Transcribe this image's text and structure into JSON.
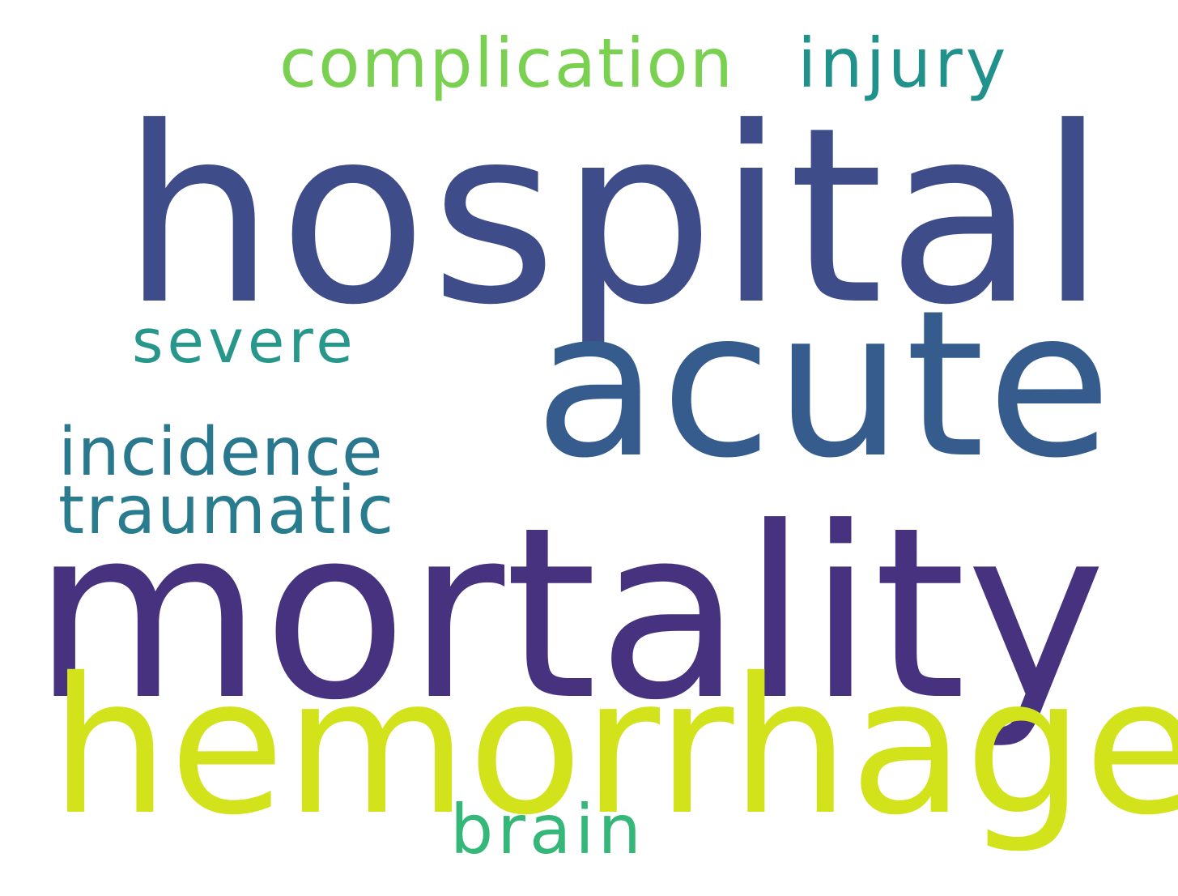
{
  "words": [
    {
      "id": "hospital",
      "text": "hospital",
      "color": "#3e4d89"
    },
    {
      "id": "acute",
      "text": "acute",
      "color": "#365c8d"
    },
    {
      "id": "mortality",
      "text": "mortality",
      "color": "#46327e"
    },
    {
      "id": "hemorrhage",
      "text": "hemorrhage",
      "color": "#d2e21b"
    },
    {
      "id": "complication",
      "text": "complication",
      "color": "#7ad151"
    },
    {
      "id": "injury",
      "text": "injury",
      "color": "#21918c"
    },
    {
      "id": "severe",
      "text": "severe",
      "color": "#27978b"
    },
    {
      "id": "incidence",
      "text": "incidence",
      "color": "#2a788e"
    },
    {
      "id": "traumatic",
      "text": "traumatic",
      "color": "#297b8e"
    },
    {
      "id": "brain",
      "text": "brain",
      "color": "#35b779"
    }
  ],
  "background_color": "#ffffff"
}
